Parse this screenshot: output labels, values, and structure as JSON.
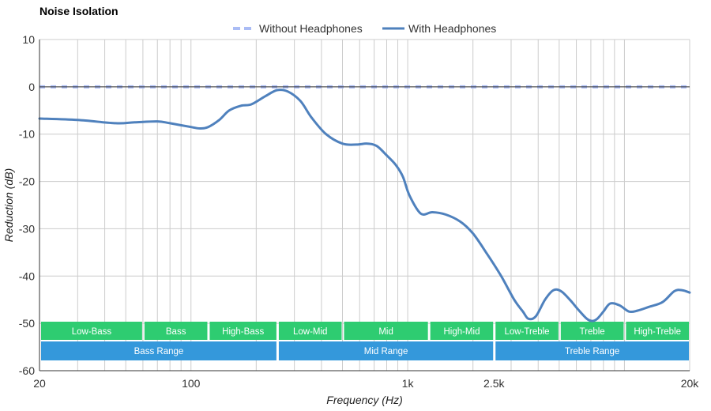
{
  "chart_data": {
    "type": "line",
    "title": "Noise Isolation",
    "xlabel": "Frequency (Hz)",
    "ylabel": "Reduction (dB)",
    "x_scale": "log",
    "xlim": [
      20,
      20000
    ],
    "ylim": [
      -60,
      10
    ],
    "x_ticks": [
      {
        "value": 20,
        "label": "20"
      },
      {
        "value": 100,
        "label": "100"
      },
      {
        "value": 1000,
        "label": "1k"
      },
      {
        "value": 2500,
        "label": "2.5k"
      },
      {
        "value": 20000,
        "label": "20k"
      }
    ],
    "y_ticks": [
      10,
      0,
      -10,
      -20,
      -30,
      -40,
      -50,
      -60
    ],
    "grid": true,
    "legend_position": "top-center",
    "series": [
      {
        "name": "Without Headphones",
        "style": "dashed",
        "color": "#aabcf5",
        "x": [
          20,
          20000
        ],
        "y": [
          0,
          0
        ]
      },
      {
        "name": "With Headphones",
        "style": "solid",
        "color": "#4f81bd",
        "x": [
          20,
          30,
          45,
          55,
          70,
          80,
          100,
          110,
          120,
          135,
          150,
          170,
          190,
          220,
          250,
          280,
          320,
          360,
          420,
          500,
          580,
          650,
          720,
          800,
          880,
          950,
          1020,
          1150,
          1300,
          1500,
          1750,
          2000,
          2300,
          2700,
          3100,
          3400,
          3600,
          3900,
          4300,
          4700,
          5100,
          5600,
          6100,
          6700,
          7100,
          7500,
          8000,
          8600,
          9500,
          10500,
          11500,
          13000,
          15000,
          17000,
          18500,
          20000
        ],
        "y": [
          -6.7,
          -7.0,
          -7.7,
          -7.5,
          -7.3,
          -7.7,
          -8.5,
          -8.8,
          -8.5,
          -7.0,
          -5.0,
          -4.0,
          -3.7,
          -2.0,
          -0.7,
          -1.0,
          -3.0,
          -6.5,
          -10.0,
          -12.0,
          -12.2,
          -12.0,
          -12.5,
          -14.5,
          -16.5,
          -19.0,
          -23.0,
          -26.8,
          -26.5,
          -27.0,
          -28.5,
          -31.0,
          -35.0,
          -40.0,
          -45.0,
          -47.5,
          -49.0,
          -48.5,
          -45.0,
          -43.0,
          -43.2,
          -45.0,
          -47.0,
          -49.0,
          -49.5,
          -49.0,
          -47.5,
          -45.8,
          -46.2,
          -47.5,
          -47.3,
          -46.5,
          -45.5,
          -43.2,
          -43.0,
          -43.5
        ]
      }
    ],
    "bands": {
      "ranges": [
        {
          "label": "Low-Bass",
          "from": 20,
          "to": 60
        },
        {
          "label": "Bass",
          "from": 60,
          "to": 120
        },
        {
          "label": "High-Bass",
          "from": 120,
          "to": 250
        },
        {
          "label": "Low-Mid",
          "from": 250,
          "to": 500
        },
        {
          "label": "Mid",
          "from": 500,
          "to": 1250
        },
        {
          "label": "High-Mid",
          "from": 1250,
          "to": 2500
        },
        {
          "label": "Low-Treble",
          "from": 2500,
          "to": 5000
        },
        {
          "label": "Treble",
          "from": 5000,
          "to": 10000
        },
        {
          "label": "High-Treble",
          "from": 10000,
          "to": 20000
        }
      ],
      "groups": [
        {
          "label": "Bass Range",
          "from": 20,
          "to": 250
        },
        {
          "label": "Mid Range",
          "from": 250,
          "to": 2500
        },
        {
          "label": "Treble Range",
          "from": 2500,
          "to": 20000
        }
      ],
      "range_color": "#2ecc71",
      "group_color": "#3498db"
    }
  }
}
